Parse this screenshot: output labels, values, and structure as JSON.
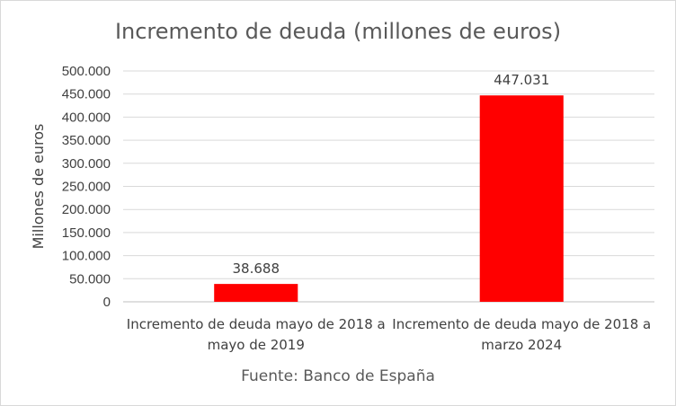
{
  "chart_data": {
    "type": "bar",
    "title": "Incremento de deuda (millones de euros)",
    "ylabel": "Millones de euros",
    "xlabel": "",
    "categories": [
      [
        "Incremento de deuda mayo de 2018 a",
        "mayo de 2019"
      ],
      [
        "Incremento de deuda mayo de 2018 a",
        "marzo 2024"
      ]
    ],
    "values": [
      38688,
      447031
    ],
    "data_labels": [
      "38.688",
      "447.031"
    ],
    "ylim": [
      0,
      500000
    ],
    "y_ticks": [
      0,
      50000,
      100000,
      150000,
      200000,
      250000,
      300000,
      350000,
      400000,
      450000,
      500000
    ],
    "y_tick_labels": [
      "0",
      "50.000",
      "100.000",
      "150.000",
      "200.000",
      "250.000",
      "300.000",
      "350.000",
      "400.000",
      "450.000",
      "500.000"
    ],
    "grid": true,
    "legend": "none",
    "bar_color": "#ff0000",
    "source": "Fuente: Banco de España"
  }
}
